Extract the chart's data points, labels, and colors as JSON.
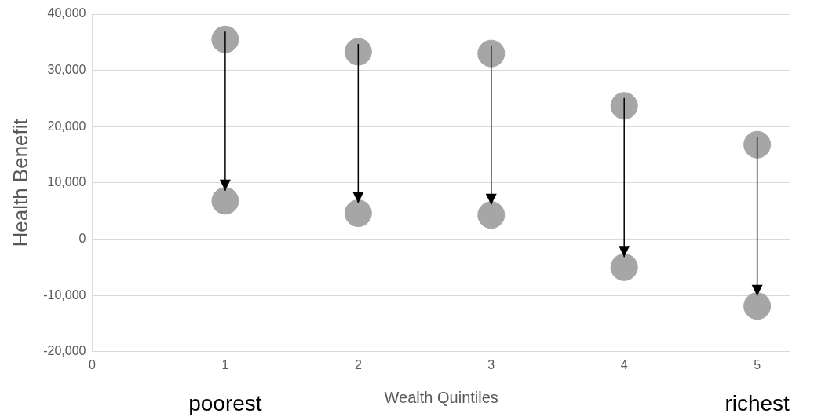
{
  "chart_data": {
    "type": "scatter",
    "xlabel": "Wealth Quintiles",
    "ylabel": "Health Benefit",
    "x": [
      1,
      2,
      3,
      4,
      5
    ],
    "series": [
      {
        "color": "#a6a6a6",
        "values": [
          35500,
          33300,
          33000,
          23700,
          16800
        ]
      },
      {
        "color": "#a6a6a6",
        "values": [
          6800,
          4600,
          4300,
          -5000,
          -11900
        ]
      }
    ],
    "xlim": [
      0,
      5.25
    ],
    "xticks": [
      0,
      1,
      2,
      3,
      4,
      5
    ],
    "ylim": [
      -20000,
      40000
    ],
    "yticks": [
      {
        "value": -20000,
        "label": "-20,000"
      },
      {
        "value": -10000,
        "label": "-10,000"
      },
      0,
      {
        "value": 10000,
        "label": "10,000"
      },
      {
        "value": 20000,
        "label": "20,000"
      },
      {
        "value": 30000,
        "label": "30,000"
      },
      {
        "value": 40000,
        "label": "40,000"
      }
    ],
    "grid": "y",
    "legend": false,
    "marker": "circle",
    "annotations": [
      "poorest",
      "richest"
    ]
  }
}
